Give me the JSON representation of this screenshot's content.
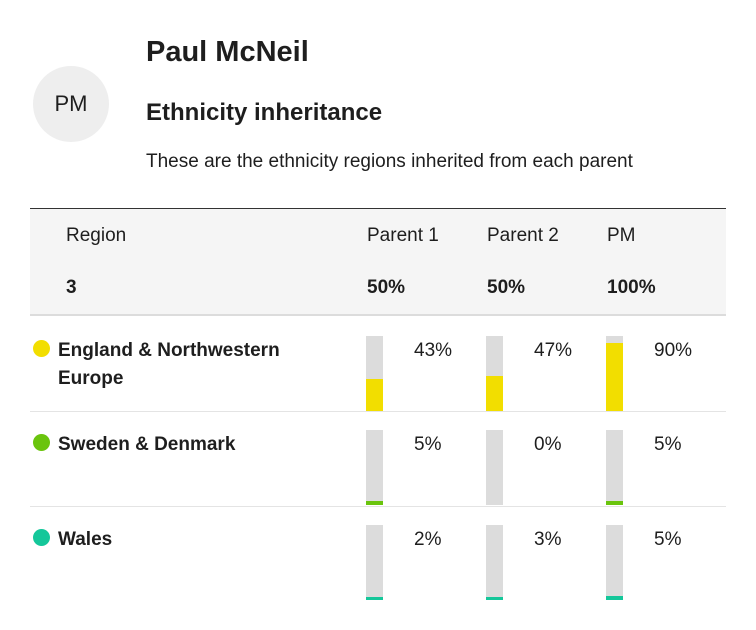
{
  "profile": {
    "initials": "PM",
    "name": "Paul McNeil",
    "subtitle": "Ethnicity inheritance",
    "description": "These are the ethnicity regions inherited from each parent"
  },
  "table": {
    "headers": {
      "region": "Region",
      "parent1": "Parent 1",
      "parent2": "Parent 2",
      "self": "PM"
    },
    "totals": {
      "region_count": "3",
      "parent1": "50%",
      "parent2": "50%",
      "self": "100%"
    },
    "rows": [
      {
        "label": "England & Northwestern Europe",
        "color": "#f2de00",
        "parent1": "43%",
        "parent1_value": 43,
        "parent2": "47%",
        "parent2_value": 47,
        "self": "90%",
        "self_value": 90
      },
      {
        "label": "Sweden & Denmark",
        "color": "#6ac40d",
        "parent1": "5%",
        "parent1_value": 5,
        "parent2": "0%",
        "parent2_value": 0,
        "self": "5%",
        "self_value": 5
      },
      {
        "label": "Wales",
        "color": "#14c79a",
        "parent1": "2%",
        "parent1_value": 2,
        "parent2": "3%",
        "parent2_value": 3,
        "self": "5%",
        "self_value": 5
      }
    ]
  }
}
